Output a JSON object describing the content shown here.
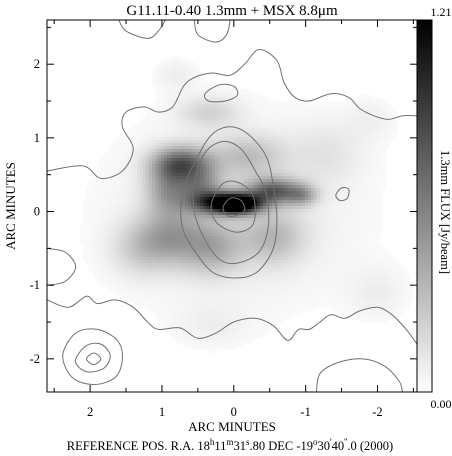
{
  "chart_data": {
    "type": "heatmap",
    "title": "G11.11-0.40   1.3mm + MSX 8.8μm",
    "xlabel": "ARC MINUTES",
    "ylabel": "ARC MINUTES",
    "footer": {
      "prefix": "REFERENCE POS.  R.A. 18",
      "ra_h_sup": "h",
      "ra_m_val": "11",
      "ra_m_sup": "m",
      "ra_s_val": "31",
      "ra_s_sup": "s",
      "ra_s_frac": ".80  DEC  -19",
      "dec_d_sup": "o",
      "dec_m_val": "30",
      "dec_m_sup": "'",
      "dec_s_val": "40",
      "dec_s_sup": "''",
      "dec_s_frac": ".0  (2000)"
    },
    "xlim": [
      2.6,
      -2.55
    ],
    "ylim": [
      -2.45,
      2.6
    ],
    "x_ticks": [
      2,
      1,
      0,
      -1,
      -2
    ],
    "x_tick_labels": [
      "2",
      "1",
      "0",
      "-1",
      "-2"
    ],
    "y_ticks": [
      -2,
      -1,
      0,
      1,
      2
    ],
    "y_tick_labels": [
      "-2",
      "-1",
      "0",
      "1",
      "2"
    ],
    "colorbar": {
      "label": "1.3mm FLUX [Jy/beam]",
      "max_label": "1.21",
      "min_label": "0.00",
      "min": 0.0,
      "max": 1.21
    },
    "emission_blobs": [
      {
        "x": 0.05,
        "y": 0.12,
        "sx": 0.3,
        "sy": 0.1,
        "peak": 1.0
      },
      {
        "x": -0.05,
        "y": 0.08,
        "sx": 0.18,
        "sy": 0.08,
        "peak": 0.5
      },
      {
        "x": 0.72,
        "y": 0.65,
        "sx": 0.28,
        "sy": 0.16,
        "peak": 0.55
      },
      {
        "x": 0.9,
        "y": 0.3,
        "sx": 0.22,
        "sy": 0.25,
        "peak": 0.35
      },
      {
        "x": 0.45,
        "y": 0.3,
        "sx": 0.2,
        "sy": 0.2,
        "peak": 0.35
      },
      {
        "x": -0.55,
        "y": 0.28,
        "sx": 0.25,
        "sy": 0.12,
        "peak": 0.55
      },
      {
        "x": -0.95,
        "y": 0.22,
        "sx": 0.15,
        "sy": 0.1,
        "peak": 0.3
      },
      {
        "x": 0.9,
        "y": -0.35,
        "sx": 0.35,
        "sy": 0.25,
        "peak": 0.3
      },
      {
        "x": 0.3,
        "y": -0.5,
        "sx": 0.3,
        "sy": 0.25,
        "peak": 0.25
      },
      {
        "x": -0.55,
        "y": -0.35,
        "sx": 0.3,
        "sy": 0.25,
        "peak": 0.22
      },
      {
        "x": 0.35,
        "y": 1.35,
        "sx": 0.3,
        "sy": 0.15,
        "peak": 0.15
      },
      {
        "x": -0.2,
        "y": 0.75,
        "sx": 0.35,
        "sy": 0.2,
        "peak": 0.2
      },
      {
        "x": 0.0,
        "y": 0.0,
        "sx": 1.2,
        "sy": 0.9,
        "peak": 0.09
      },
      {
        "x": 1.3,
        "y": -0.55,
        "sx": 0.3,
        "sy": 0.25,
        "peak": 0.12
      },
      {
        "x": -1.3,
        "y": 0.8,
        "sx": 0.35,
        "sy": 0.3,
        "peak": 0.08
      },
      {
        "x": 0.8,
        "y": 1.85,
        "sx": 0.2,
        "sy": 0.15,
        "peak": 0.06
      },
      {
        "x": -2.0,
        "y": -1.1,
        "sx": 0.3,
        "sy": 0.25,
        "peak": 0.06
      },
      {
        "x": 0.3,
        "y": -1.55,
        "sx": 0.35,
        "sy": 0.2,
        "peak": 0.05
      },
      {
        "x": -1.9,
        "y": 1.25,
        "sx": 0.25,
        "sy": 0.2,
        "peak": 0.05
      }
    ],
    "contours": [
      {
        "id": "central-1",
        "points": [
          [
            0.15,
            0.05
          ],
          [
            0.05,
            0.18
          ],
          [
            -0.1,
            0.15
          ],
          [
            -0.15,
            0.02
          ],
          [
            -0.05,
            -0.05
          ],
          [
            0.08,
            -0.06
          ]
        ]
      },
      {
        "id": "central-2",
        "points": [
          [
            0.3,
            0.15
          ],
          [
            0.15,
            0.38
          ],
          [
            -0.05,
            0.4
          ],
          [
            -0.25,
            0.25
          ],
          [
            -0.3,
            0.0
          ],
          [
            -0.25,
            -0.2
          ],
          [
            -0.05,
            -0.28
          ],
          [
            0.18,
            -0.2
          ],
          [
            0.3,
            -0.05
          ]
        ]
      },
      {
        "id": "central-3",
        "points": [
          [
            0.55,
            0.4
          ],
          [
            0.4,
            0.8
          ],
          [
            0.15,
            0.95
          ],
          [
            -0.1,
            0.85
          ],
          [
            -0.3,
            0.55
          ],
          [
            -0.45,
            0.25
          ],
          [
            -0.48,
            -0.2
          ],
          [
            -0.35,
            -0.55
          ],
          [
            -0.05,
            -0.7
          ],
          [
            0.2,
            -0.65
          ],
          [
            0.42,
            -0.35
          ],
          [
            0.55,
            0.0
          ]
        ]
      },
      {
        "id": "central-4",
        "points": [
          [
            0.5,
            0.75
          ],
          [
            0.3,
            1.05
          ],
          [
            0.05,
            1.15
          ],
          [
            -0.2,
            1.05
          ],
          [
            -0.45,
            0.75
          ],
          [
            -0.55,
            0.35
          ],
          [
            -0.6,
            -0.1
          ],
          [
            -0.55,
            -0.5
          ],
          [
            -0.35,
            -0.8
          ],
          [
            -0.1,
            -0.9
          ],
          [
            0.25,
            -0.85
          ],
          [
            0.5,
            -0.6
          ],
          [
            0.72,
            -0.2
          ],
          [
            0.7,
            0.3
          ]
        ]
      },
      {
        "id": "north-loop",
        "points": [
          [
            0.4,
            1.6
          ],
          [
            0.2,
            1.72
          ],
          [
            0.0,
            1.7
          ],
          [
            -0.05,
            1.58
          ],
          [
            0.12,
            1.5
          ],
          [
            0.35,
            1.5
          ]
        ]
      },
      {
        "id": "south-west-1",
        "points": [
          [
            2.05,
            -2.0
          ],
          [
            1.95,
            -1.92
          ],
          [
            1.85,
            -2.0
          ],
          [
            1.95,
            -2.08
          ]
        ]
      },
      {
        "id": "south-west-2",
        "points": [
          [
            2.2,
            -2.0
          ],
          [
            2.05,
            -1.82
          ],
          [
            1.85,
            -1.8
          ],
          [
            1.72,
            -1.95
          ],
          [
            1.8,
            -2.12
          ],
          [
            2.0,
            -2.18
          ],
          [
            2.15,
            -2.12
          ]
        ]
      },
      {
        "id": "south-west-3",
        "points": [
          [
            2.38,
            -1.95
          ],
          [
            2.2,
            -1.65
          ],
          [
            1.9,
            -1.6
          ],
          [
            1.62,
            -1.75
          ],
          [
            1.55,
            -2.0
          ],
          [
            1.65,
            -2.25
          ],
          [
            1.95,
            -2.35
          ],
          [
            2.25,
            -2.25
          ]
        ]
      },
      {
        "id": "small-east-loop",
        "points": [
          [
            -1.42,
            0.22
          ],
          [
            -1.5,
            0.32
          ],
          [
            -1.6,
            0.3
          ],
          [
            -1.58,
            0.18
          ],
          [
            -1.48,
            0.15
          ]
        ]
      }
    ],
    "boundary_paths": [
      {
        "id": "outer-envelope",
        "points": [
          [
            2.6,
            0.55
          ],
          [
            2.1,
            0.62
          ],
          [
            1.85,
            0.45
          ],
          [
            1.55,
            0.55
          ],
          [
            1.4,
            0.85
          ],
          [
            1.55,
            1.15
          ],
          [
            1.5,
            1.35
          ],
          [
            1.25,
            1.42
          ],
          [
            1.05,
            1.35
          ],
          [
            0.85,
            1.42
          ],
          [
            0.7,
            1.7
          ],
          [
            0.55,
            1.82
          ],
          [
            0.3,
            1.88
          ],
          [
            0.05,
            1.85
          ],
          [
            -0.15,
            2.0
          ],
          [
            -0.35,
            2.2
          ],
          [
            -0.6,
            2.05
          ],
          [
            -0.7,
            1.75
          ],
          [
            -0.85,
            1.55
          ],
          [
            -1.05,
            1.5
          ],
          [
            -1.35,
            1.6
          ],
          [
            -1.6,
            1.55
          ],
          [
            -1.75,
            1.4
          ],
          [
            -1.95,
            1.3
          ],
          [
            -2.15,
            1.25
          ],
          [
            -2.35,
            1.3
          ],
          [
            -2.55,
            1.3
          ]
        ]
      },
      {
        "id": "lower-envelope",
        "points": [
          [
            2.6,
            -1.2
          ],
          [
            2.3,
            -1.3
          ],
          [
            2.05,
            -1.15
          ],
          [
            1.9,
            -1.25
          ],
          [
            1.65,
            -1.2
          ],
          [
            1.4,
            -1.3
          ],
          [
            1.2,
            -1.5
          ],
          [
            1.05,
            -1.6
          ],
          [
            0.75,
            -1.58
          ],
          [
            0.5,
            -1.72
          ],
          [
            0.25,
            -1.65
          ],
          [
            0.0,
            -1.5
          ],
          [
            -0.3,
            -1.45
          ],
          [
            -0.55,
            -1.55
          ],
          [
            -0.75,
            -1.75
          ],
          [
            -0.9,
            -1.6
          ],
          [
            -1.05,
            -1.6
          ],
          [
            -1.2,
            -1.5
          ],
          [
            -1.35,
            -1.4
          ],
          [
            -1.55,
            -1.45
          ],
          [
            -1.75,
            -1.35
          ],
          [
            -2.0,
            -1.3
          ],
          [
            -2.2,
            -1.4
          ],
          [
            -2.4,
            -1.6
          ],
          [
            -2.55,
            -1.8
          ]
        ]
      },
      {
        "id": "top-wisp",
        "points": [
          [
            0.55,
            2.6
          ],
          [
            0.5,
            2.4
          ],
          [
            0.25,
            2.3
          ],
          [
            0.1,
            2.4
          ],
          [
            0.05,
            2.6
          ]
        ]
      },
      {
        "id": "top-left-wisp",
        "points": [
          [
            1.6,
            2.6
          ],
          [
            1.5,
            2.45
          ],
          [
            1.2,
            2.35
          ],
          [
            1.05,
            2.45
          ],
          [
            0.95,
            2.6
          ]
        ]
      },
      {
        "id": "bottom-right-wisp",
        "points": [
          [
            -1.15,
            -2.45
          ],
          [
            -1.2,
            -2.2
          ],
          [
            -1.45,
            -2.05
          ],
          [
            -1.8,
            -2.0
          ],
          [
            -2.1,
            -2.1
          ],
          [
            -2.3,
            -2.3
          ],
          [
            -2.35,
            -2.45
          ]
        ]
      },
      {
        "id": "left-wisp",
        "points": [
          [
            2.6,
            -0.5
          ],
          [
            2.35,
            -0.55
          ],
          [
            2.2,
            -0.75
          ],
          [
            2.35,
            -0.95
          ],
          [
            2.6,
            -1.0
          ]
        ]
      }
    ]
  }
}
